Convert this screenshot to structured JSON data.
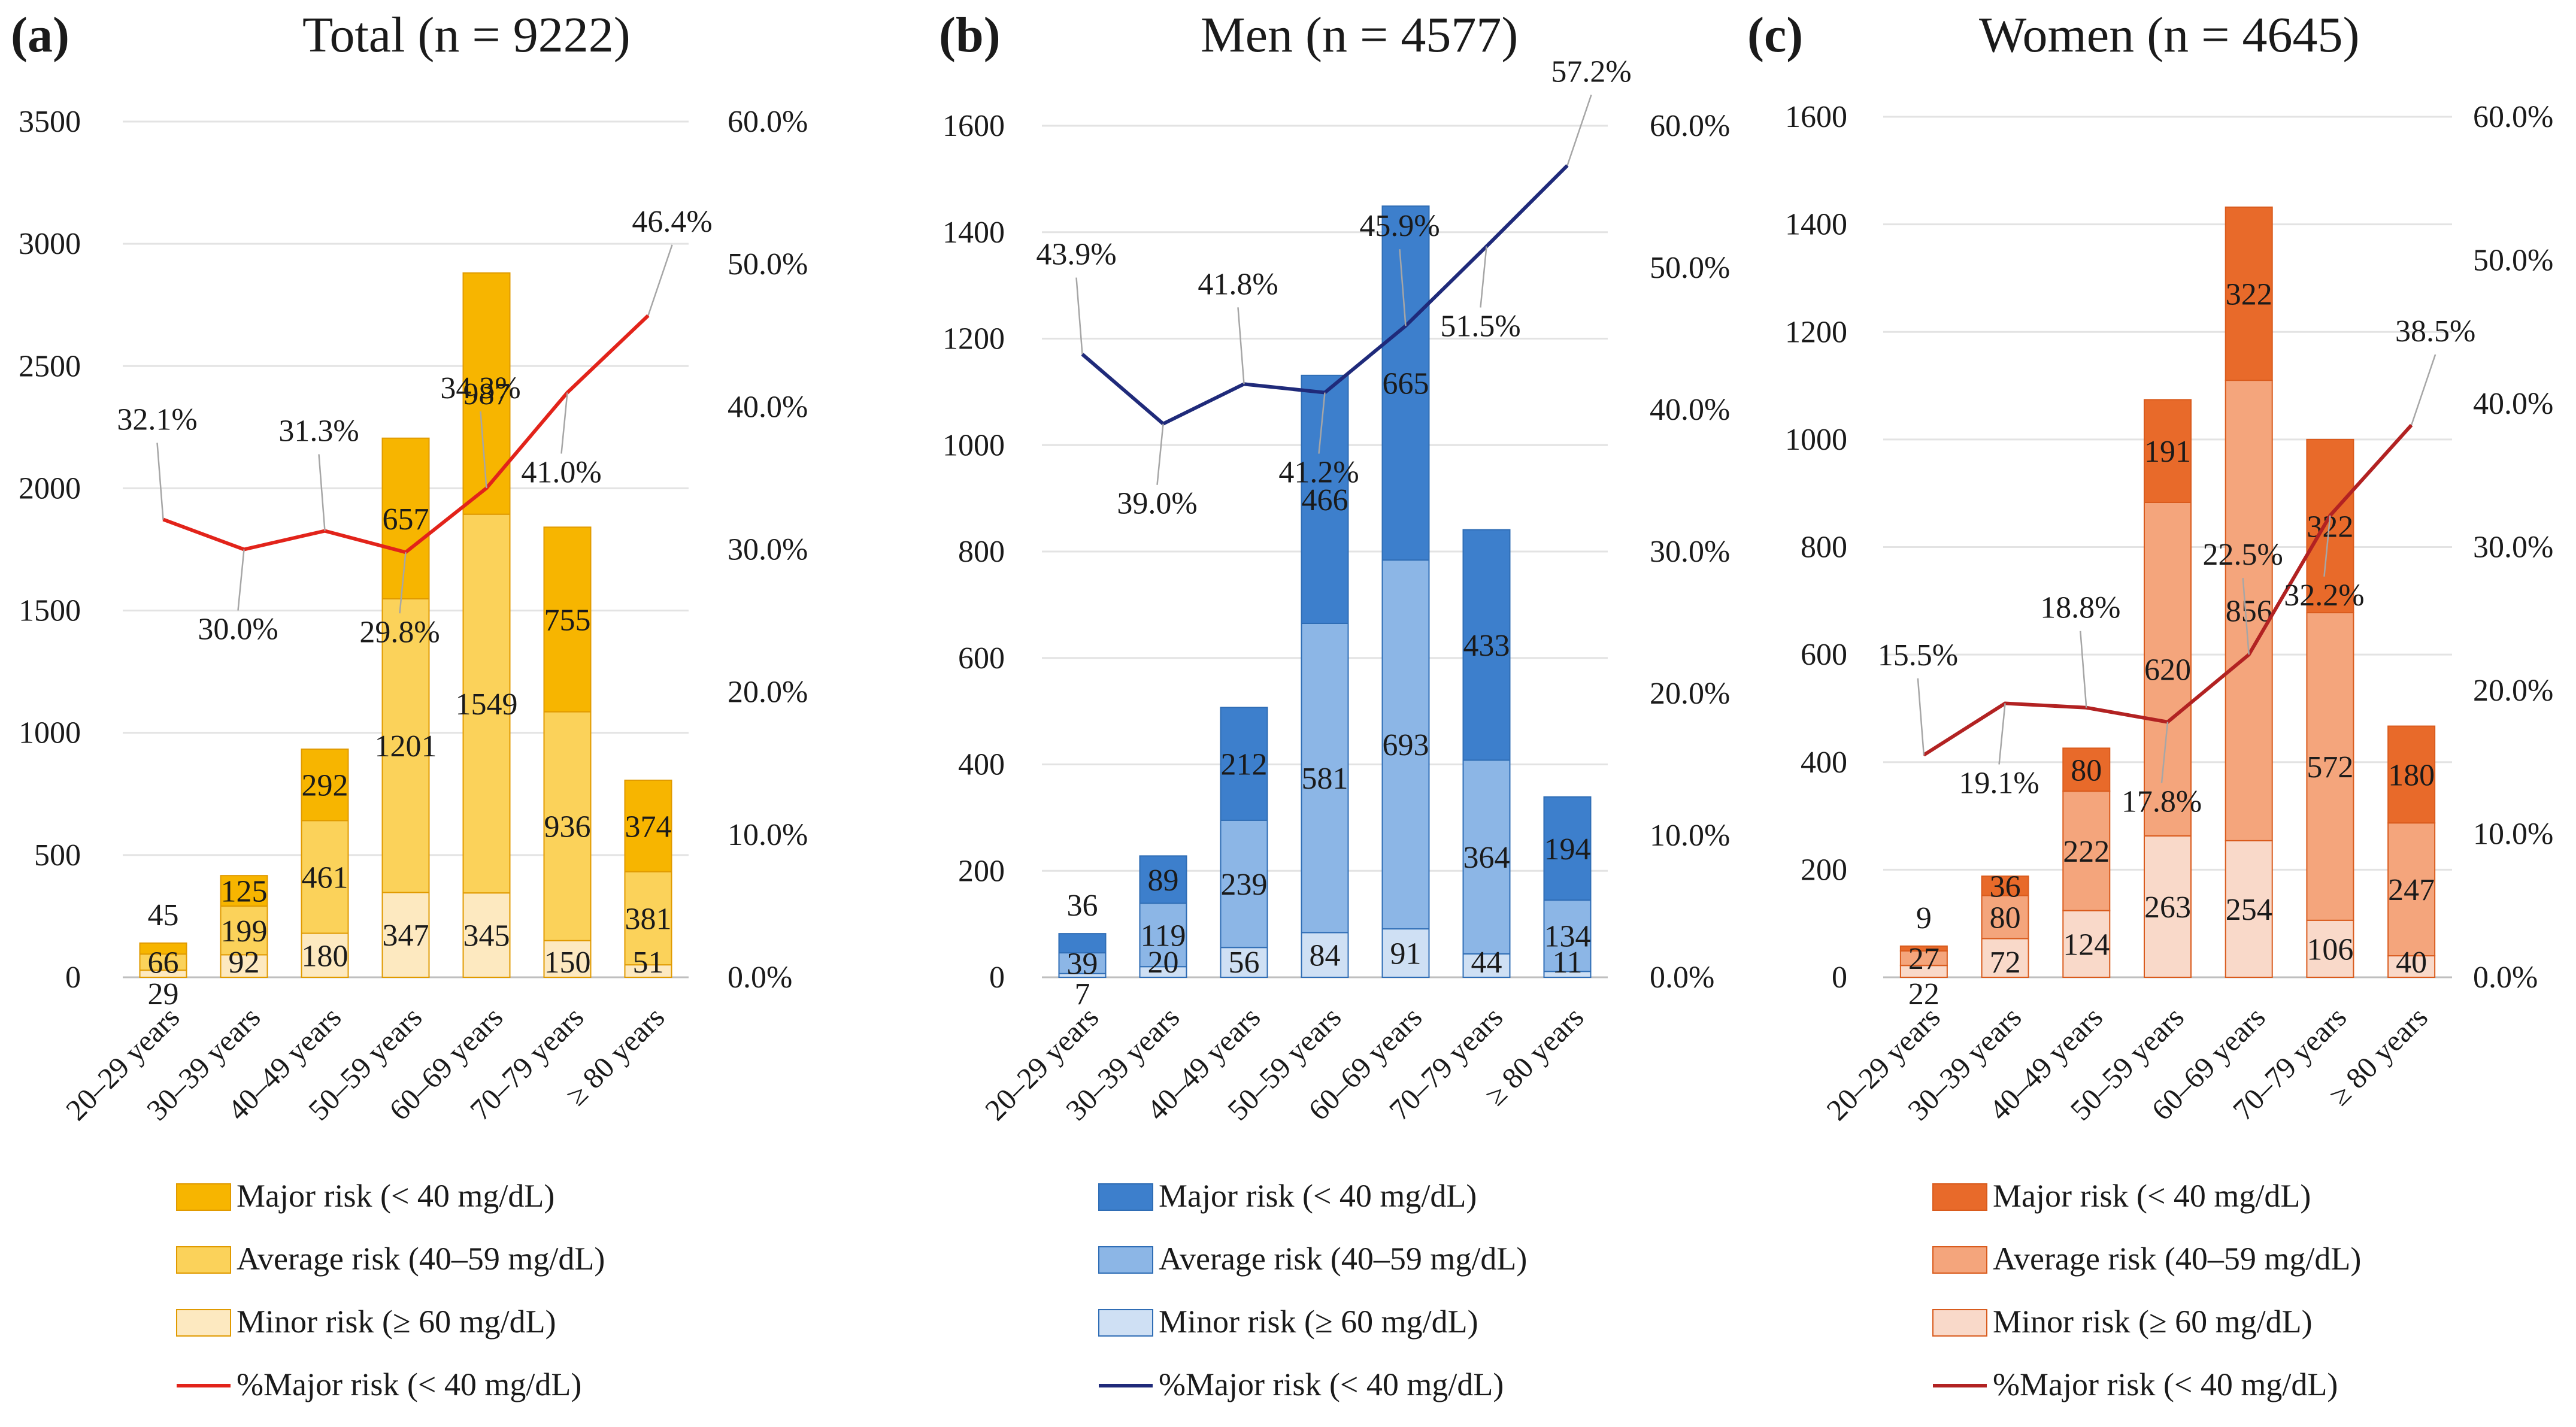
{
  "chart_data": [
    {
      "type": "bar",
      "panel": "(a)",
      "title_main": "Total",
      "title_n": "(n = 9222)",
      "categories": [
        "20–29 years",
        "30–39 years",
        "40–49 years",
        "50–59 years",
        "60–69 years",
        "70–79 years",
        "≥ 80 years"
      ],
      "series": [
        {
          "name": "Minor risk (≥ 60 mg/dL)",
          "values": [
            29,
            92,
            180,
            347,
            345,
            150,
            51
          ]
        },
        {
          "name": "Average risk (40–59 mg/dL)",
          "values": [
            66,
            199,
            461,
            1201,
            1549,
            936,
            381
          ]
        },
        {
          "name": "Major risk (< 40 mg/dL)",
          "values": [
            45,
            125,
            292,
            657,
            987,
            755,
            374
          ]
        }
      ],
      "line": {
        "name": "%Major risk (< 40 mg/dL)",
        "values": [
          32.1,
          30.0,
          31.3,
          29.8,
          34.3,
          41.0,
          46.4
        ],
        "labels": [
          "32.1%",
          "30.0%",
          "31.3%",
          "29.8%",
          "34.3%",
          "41.0%",
          "46.4%"
        ]
      },
      "ylim": [
        0,
        3500
      ],
      "yticks": [
        0,
        500,
        1000,
        1500,
        2000,
        2500,
        3000,
        3500
      ],
      "y2lim": [
        0,
        60
      ],
      "y2ticks": [
        "0.0%",
        "10.0%",
        "20.0%",
        "30.0%",
        "40.0%",
        "50.0%",
        "60.0%"
      ],
      "legend": [
        "Major risk (< 40 mg/dL)",
        "Average risk (40–59 mg/dL)",
        "Minor risk (≥ 60 mg/dL)",
        "%Major risk (< 40 mg/dL)"
      ],
      "colors": {
        "major": "#f7b500",
        "average": "#fbd25a",
        "minor": "#fde9c0",
        "line": "#e2231a",
        "stroke": "#e09a00"
      }
    },
    {
      "type": "bar",
      "panel": "(b)",
      "title_main": "Men",
      "title_n": "(n = 4577)",
      "categories": [
        "20–29 years",
        "30–39 years",
        "40–49 years",
        "50–59 years",
        "60–69 years",
        "70–79 years",
        "≥ 80 years"
      ],
      "series": [
        {
          "name": "Minor risk (≥ 60 mg/dL)",
          "values": [
            7,
            20,
            56,
            84,
            91,
            44,
            11
          ]
        },
        {
          "name": "Average risk (40–59 mg/dL)",
          "values": [
            39,
            119,
            239,
            581,
            693,
            364,
            134
          ]
        },
        {
          "name": "Major risk (< 40 mg/dL)",
          "values": [
            36,
            89,
            212,
            466,
            665,
            433,
            194
          ]
        }
      ],
      "line": {
        "name": "%Major risk (< 40 mg/dL)",
        "values": [
          43.9,
          39.0,
          41.8,
          41.2,
          45.9,
          51.5,
          57.2
        ],
        "labels": [
          "43.9%",
          "39.0%",
          "41.8%",
          "41.2%",
          "45.9%",
          "51.5%",
          "57.2%"
        ]
      },
      "ylim": [
        0,
        1600
      ],
      "yticks": [
        0,
        200,
        400,
        600,
        800,
        1000,
        1200,
        1400,
        1600
      ],
      "y2lim": [
        0,
        60
      ],
      "y2ticks": [
        "0.0%",
        "10.0%",
        "20.0%",
        "30.0%",
        "40.0%",
        "50.0%",
        "60.0%"
      ],
      "legend": [
        "Major risk (< 40 mg/dL)",
        "Average risk (40–59 mg/dL)",
        "Minor risk (≥ 60 mg/dL)",
        "%Major risk (< 40 mg/dL)"
      ],
      "colors": {
        "major": "#3d7fcc",
        "average": "#8cb6e6",
        "minor": "#cfe0f4",
        "line": "#1f2a7a",
        "stroke": "#2f6db5"
      }
    },
    {
      "type": "bar",
      "panel": "(c)",
      "title_main": "Women",
      "title_n": "(n = 4645)",
      "categories": [
        "20–29 years",
        "30–39 years",
        "40–49 years",
        "50–59 years",
        "60–69 years",
        "70–79 years",
        "≥ 80 years"
      ],
      "series": [
        {
          "name": "Minor risk (≥ 60 mg/dL)",
          "values": [
            22,
            72,
            124,
            263,
            254,
            106,
            40
          ]
        },
        {
          "name": "Average risk (40–59 mg/dL)",
          "values": [
            27,
            80,
            222,
            620,
            856,
            572,
            247
          ]
        },
        {
          "name": "Major risk (< 40 mg/dL)",
          "values": [
            9,
            36,
            80,
            191,
            322,
            322,
            180
          ]
        }
      ],
      "line": {
        "name": "%Major risk (< 40 mg/dL)",
        "values": [
          15.5,
          19.1,
          18.8,
          17.8,
          22.5,
          32.2,
          38.5
        ],
        "labels": [
          "15.5%",
          "19.1%",
          "18.8%",
          "17.8%",
          "22.5%",
          "32.2%",
          "38.5%"
        ]
      },
      "ylim": [
        0,
        1600
      ],
      "yticks": [
        0,
        200,
        400,
        600,
        800,
        1000,
        1200,
        1400,
        1600
      ],
      "y2lim": [
        0,
        60
      ],
      "y2ticks": [
        "0.0%",
        "10.0%",
        "20.0%",
        "30.0%",
        "40.0%",
        "50.0%",
        "60.0%"
      ],
      "legend": [
        "Major risk (< 40 mg/dL)",
        "Average risk (40–59 mg/dL)",
        "Minor risk (≥ 60 mg/dL)",
        "%Major risk (< 40 mg/dL)"
      ],
      "colors": {
        "major": "#e86a2a",
        "average": "#f4a57c",
        "minor": "#f9d9c9",
        "line": "#b22222",
        "stroke": "#d95b1d"
      }
    }
  ]
}
